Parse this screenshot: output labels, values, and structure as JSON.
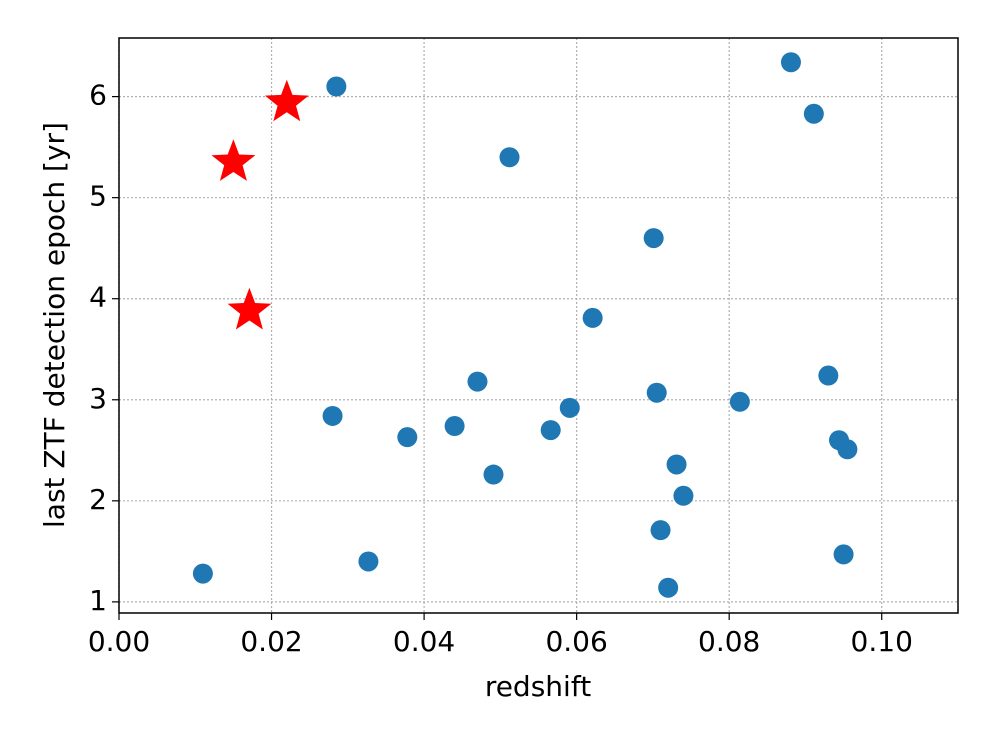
{
  "chart_data": {
    "type": "scatter",
    "xlabel": "redshift",
    "ylabel": "last ZTF detection epoch [yr]",
    "xlim": [
      0,
      0.11
    ],
    "ylim": [
      0.89,
      6.58
    ],
    "xticks": [
      {
        "value": 0,
        "label": "0.00"
      },
      {
        "value": 0.02,
        "label": "0.02"
      },
      {
        "value": 0.04,
        "label": "0.04"
      },
      {
        "value": 0.06,
        "label": "0.06"
      },
      {
        "value": 0.08,
        "label": "0.08"
      },
      {
        "value": 0.1,
        "label": "0.10"
      }
    ],
    "yticks": [
      1,
      2,
      3,
      4,
      5,
      6
    ],
    "grid": true,
    "series": [
      {
        "color": "#1f77b4",
        "marker": "circle",
        "x": [
          0.0285,
          0.0881,
          0.0911,
          0.0512,
          0.0701,
          0.0621,
          0.047,
          0.0705,
          0.0814,
          0.093,
          0.028,
          0.0378,
          0.044,
          0.0591,
          0.0566,
          0.0944,
          0.0955,
          0.0491,
          0.0731,
          0.074,
          0.071,
          0.072,
          0.095,
          0.011,
          0.0327
        ],
        "values": [
          6.1,
          6.34,
          5.83,
          5.4,
          4.6,
          3.81,
          3.18,
          3.07,
          2.98,
          3.24,
          2.84,
          2.63,
          2.74,
          2.92,
          2.7,
          2.6,
          2.51,
          2.26,
          2.36,
          2.05,
          1.71,
          1.14,
          1.47,
          1.28,
          1.4
        ]
      },
      {
        "color": "#ff0000",
        "marker": "star",
        "x": [
          0.022,
          0.015,
          0.0171
        ],
        "values": [
          5.94,
          5.35,
          3.88
        ]
      }
    ]
  }
}
